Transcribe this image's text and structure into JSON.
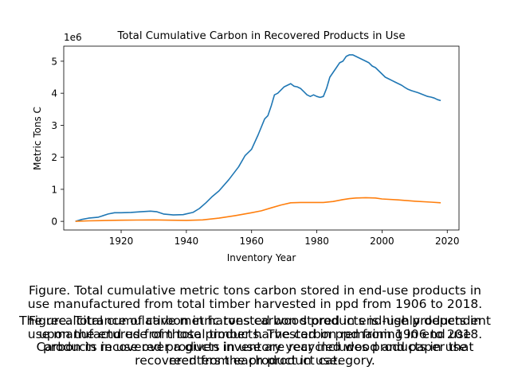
{
  "chart_data": {
    "type": "line",
    "title": "Total Cumulative Carbon in Recovered Products in Use",
    "xlabel": "Inventory Year",
    "ylabel": "Metric Tons C",
    "y_scale_label": "1e6",
    "xlim": [
      1902.4,
      2023.6
    ],
    "ylim": [
      -270000,
      5470000
    ],
    "x_ticks": [
      1920,
      1940,
      1960,
      1980,
      2000,
      2020
    ],
    "x_tick_labels": [
      "1920",
      "1940",
      "1960",
      "1980",
      "2000",
      "2020"
    ],
    "y_ticks": [
      0,
      1000000,
      2000000,
      3000000,
      4000000,
      5000000
    ],
    "y_tick_labels": [
      "0",
      "1",
      "2",
      "3",
      "4",
      "5"
    ],
    "grid": false,
    "legend": false,
    "series": [
      {
        "color": "#1f77b4",
        "x": [
          1906,
          1908,
          1910,
          1913,
          1916,
          1918,
          1920,
          1923,
          1926,
          1929,
          1931,
          1933,
          1936,
          1939,
          1942,
          1944,
          1946,
          1948,
          1950,
          1953,
          1956,
          1958,
          1960,
          1962,
          1964,
          1965,
          1966,
          1967,
          1968,
          1970,
          1971,
          1972,
          1973,
          1974,
          1975,
          1976,
          1977,
          1978,
          1979,
          1980,
          1981,
          1982,
          1983,
          1984,
          1985,
          1986,
          1987,
          1988,
          1989,
          1990,
          1991,
          1992,
          1993,
          1994,
          1995,
          1996,
          1997,
          1998,
          1999,
          2000,
          2001,
          2002,
          2003,
          2004,
          2005,
          2006,
          2007,
          2008,
          2009,
          2010,
          2011,
          2012,
          2013,
          2014,
          2015,
          2016,
          2017,
          2018
        ],
        "values": [
          0,
          60000,
          100000,
          130000,
          230000,
          270000,
          270000,
          280000,
          300000,
          320000,
          300000,
          230000,
          200000,
          210000,
          280000,
          400000,
          580000,
          780000,
          950000,
          1300000,
          1700000,
          2050000,
          2250000,
          2700000,
          3200000,
          3300000,
          3600000,
          3950000,
          4000000,
          4200000,
          4250000,
          4300000,
          4220000,
          4200000,
          4150000,
          4050000,
          3950000,
          3900000,
          3950000,
          3900000,
          3870000,
          3900000,
          4150000,
          4500000,
          4650000,
          4800000,
          4950000,
          5000000,
          5150000,
          5200000,
          5200000,
          5150000,
          5100000,
          5050000,
          5000000,
          4950000,
          4850000,
          4800000,
          4700000,
          4600000,
          4500000,
          4450000,
          4400000,
          4350000,
          4300000,
          4250000,
          4180000,
          4120000,
          4080000,
          4050000,
          4020000,
          3980000,
          3940000,
          3900000,
          3880000,
          3850000,
          3800000,
          3770000
        ]
      },
      {
        "color": "#ff7f0e",
        "x": [
          1906,
          1910,
          1915,
          1920,
          1925,
          1930,
          1935,
          1940,
          1945,
          1950,
          1955,
          1960,
          1963,
          1966,
          1969,
          1972,
          1975,
          1978,
          1980,
          1982,
          1985,
          1988,
          1990,
          1992,
          1995,
          1998,
          2000,
          2005,
          2010,
          2015,
          2018
        ],
        "values": [
          0,
          15000,
          25000,
          35000,
          40000,
          45000,
          35000,
          30000,
          45000,
          100000,
          180000,
          270000,
          330000,
          420000,
          510000,
          580000,
          590000,
          590000,
          590000,
          590000,
          620000,
          680000,
          710000,
          730000,
          740000,
          730000,
          700000,
          670000,
          630000,
          600000,
          580000
        ]
      }
    ]
  },
  "caption": {
    "first": "Figure. Total cumulative metric tons carbon stored in end-use products in\nuse manufactured from total timber harvested in ppd from 1906 to 2018.",
    "second_overlap_a": "The recalcitrance of carbon in harvested wood products is highly dependent\nupon the end use of those products. The carbon remaining in end use\nproducts in use over a given inventory year includes products in use\nrecovered from each product category.",
    "second_overlap_b": "Figure. Total cumulative metric tons carbon stored in end-use products in\nuse manufactured from total timber harvested in ppd from 1906 to 2018.\nCarbon in recovered products in use are recycled wood and paper that\nreenters the product in use."
  }
}
